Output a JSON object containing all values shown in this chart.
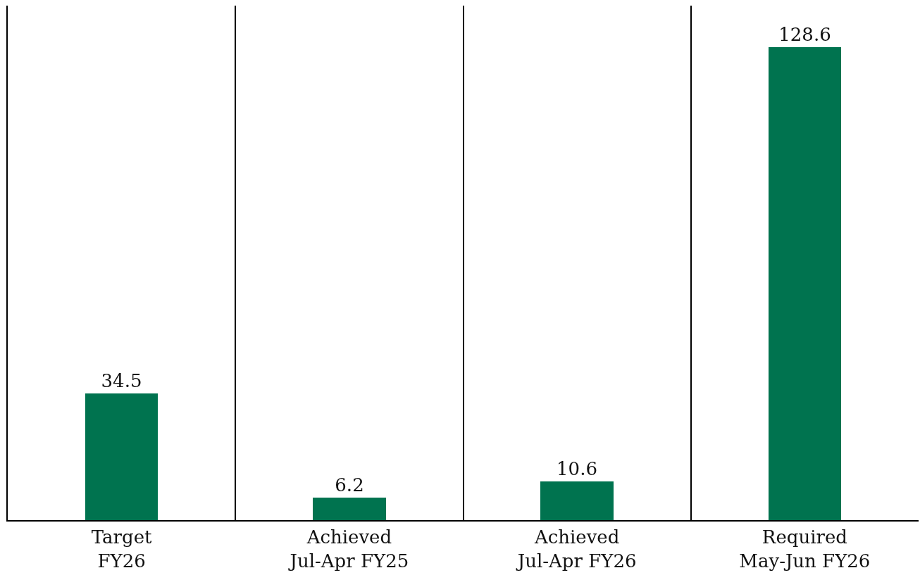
{
  "chart_data": {
    "type": "bar",
    "categories": [
      "Target\nFY26",
      "Achieved\nJul-Apr FY25",
      "Achieved\nJul-Apr FY26",
      "Required\nMay-Jun FY26"
    ],
    "values": [
      34.5,
      6.2,
      10.6,
      128.6
    ],
    "color": "#00734f",
    "data_labels": true,
    "grid": "x",
    "tick_labels": "x"
  }
}
